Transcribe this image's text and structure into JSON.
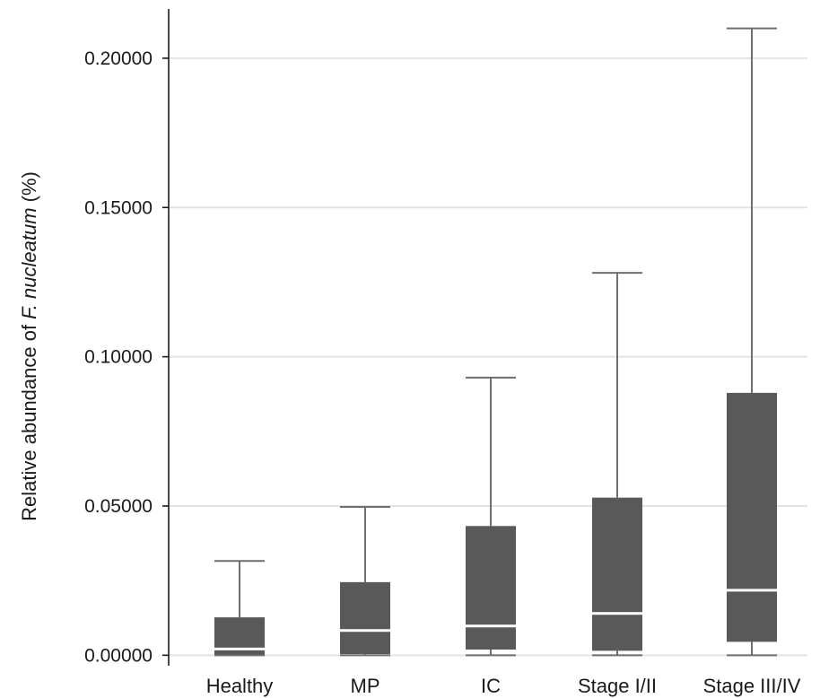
{
  "chart_data": {
    "type": "box",
    "ylabel_prefix": "Relative abundance of ",
    "ylabel_italic": "F. nucleatum",
    "ylabel_suffix": " (%)",
    "ylim": [
      -0.0035,
      0.2165
    ],
    "yticks": [
      "0.00000",
      "0.05000",
      "0.10000",
      "0.15000",
      "0.20000"
    ],
    "ytick_values": [
      0,
      0.05,
      0.1,
      0.15,
      0.2
    ],
    "grid": true,
    "box_color": "#595959",
    "median_color": "#ffffff",
    "whisker_color": "#6e6e6e",
    "grid_color": "#e3e3e3",
    "categories": [
      "Healthy",
      "MP",
      "IC",
      "Stage I/II",
      "Stage III/IV"
    ],
    "boxes": [
      {
        "min": 0.0,
        "q1": 0.0002,
        "median": 0.0021,
        "q3": 0.0127,
        "max": 0.0316
      },
      {
        "min": 0.0,
        "q1": 0.0004,
        "median": 0.0083,
        "q3": 0.0245,
        "max": 0.0497
      },
      {
        "min": 0.0,
        "q1": 0.0019,
        "median": 0.0098,
        "q3": 0.0433,
        "max": 0.093
      },
      {
        "min": 0.0,
        "q1": 0.0015,
        "median": 0.014,
        "q3": 0.0528,
        "max": 0.1281
      },
      {
        "min": 0.0,
        "q1": 0.0045,
        "median": 0.0218,
        "q3": 0.0879,
        "max": 0.21
      }
    ]
  }
}
